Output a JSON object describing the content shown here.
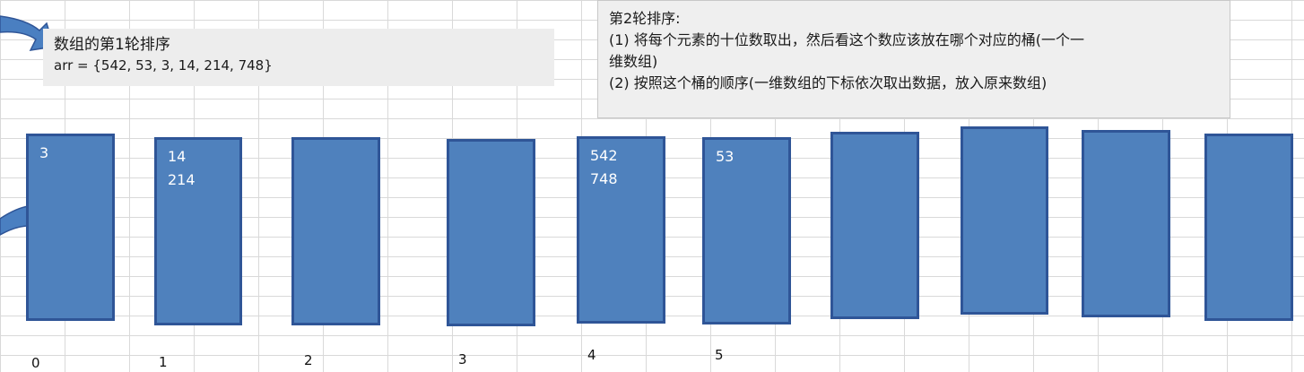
{
  "note_left": {
    "title": "数组的第1轮排序",
    "array_line": "arr = {542, 53, 3, 14, 214, 748}"
  },
  "note_right": {
    "title": "第2轮排序:",
    "step1": "(1) 将每个元素的十位数取出，然后看这个数应该放在哪个对应的桶(一个一",
    "step1_cont": "维数组)",
    "step2": "(2) 按照这个桶的顺序(一维数组的下标依次取出数据，放入原来数组)"
  },
  "buckets": [
    {
      "items": [
        "3"
      ]
    },
    {
      "items": [
        "14",
        "214"
      ]
    },
    {
      "items": []
    },
    {
      "items": []
    },
    {
      "items": [
        "542",
        "748"
      ]
    },
    {
      "items": [
        "53"
      ]
    },
    {
      "items": []
    },
    {
      "items": []
    },
    {
      "items": []
    },
    {
      "items": []
    }
  ],
  "indices": [
    "0",
    "1",
    "2",
    "3",
    "4",
    "5"
  ],
  "colors": {
    "bucket_fill": "#4f81bd",
    "bucket_border": "#2f5597",
    "arrow": "#4a7fc1"
  }
}
